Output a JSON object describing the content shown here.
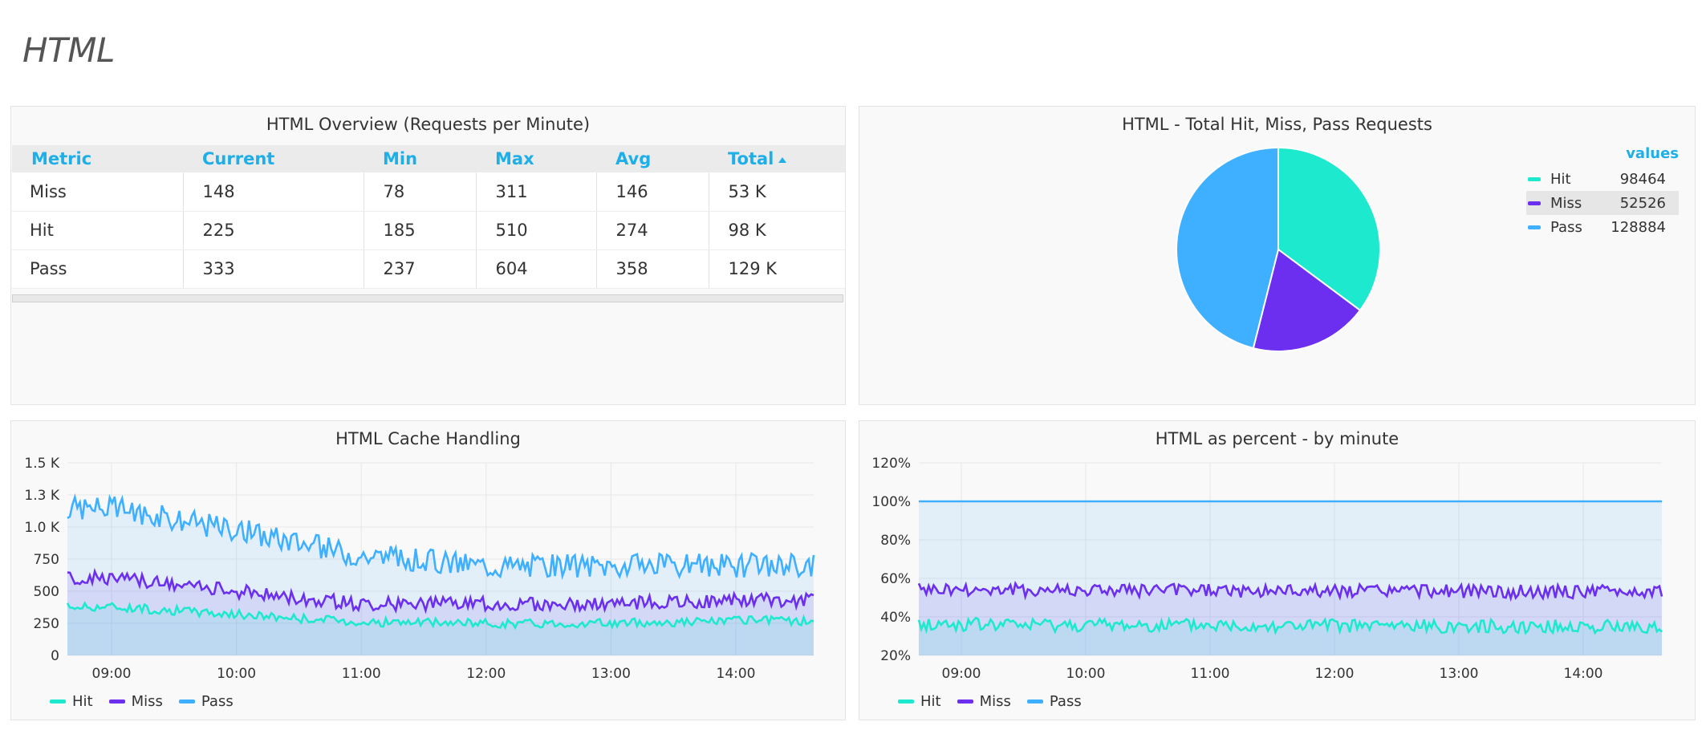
{
  "page": {
    "title": "HTML"
  },
  "colors": {
    "hit": "#1de9ce",
    "miss": "#6c2ff0",
    "pass": "#3fb0ff",
    "accent": "#1eaee8"
  },
  "overview": {
    "title": "HTML Overview (Requests per Minute)",
    "columns": [
      "Metric",
      "Current",
      "Min",
      "Max",
      "Avg",
      "Total"
    ],
    "sorted_column": "Total",
    "rows": [
      [
        "Miss",
        "148",
        "78",
        "311",
        "146",
        "53 K"
      ],
      [
        "Hit",
        "225",
        "185",
        "510",
        "274",
        "98 K"
      ],
      [
        "Pass",
        "333",
        "237",
        "604",
        "358",
        "129 K"
      ]
    ]
  },
  "pie": {
    "title": "HTML - Total Hit, Miss, Pass Requests",
    "legend_header": "values",
    "items": [
      {
        "name": "Hit",
        "value": 98464,
        "value_text": "98464"
      },
      {
        "name": "Miss",
        "value": 52526,
        "value_text": "52526"
      },
      {
        "name": "Pass",
        "value": 128884,
        "value_text": "128884"
      }
    ]
  },
  "chart_data": [
    {
      "type": "area",
      "title": "HTML Cache Handling",
      "ylim": [
        0,
        1500
      ],
      "yticks": [
        "0",
        "250",
        "500",
        "750",
        "1.0 K",
        "1.3 K",
        "1.5 K"
      ],
      "ytick_values": [
        0,
        250,
        500,
        750,
        1000,
        1250,
        1500
      ],
      "xticks": [
        "09:00",
        "10:00",
        "11:00",
        "12:00",
        "13:00",
        "14:00"
      ],
      "stacked": true,
      "series": [
        {
          "name": "Hit",
          "color": "#1de9ce",
          "levels": [
            [
              0,
              380
            ],
            [
              1,
              320
            ],
            [
              2,
              260
            ],
            [
              3,
              250
            ],
            [
              4,
              250
            ],
            [
              5,
              270
            ]
          ]
        },
        {
          "name": "Miss",
          "color": "#6c2ff0",
          "levels": [
            [
              0,
              600
            ],
            [
              1,
              500
            ],
            [
              2,
              400
            ],
            [
              3,
              400
            ],
            [
              4,
              400
            ],
            [
              5,
              430
            ]
          ]
        },
        {
          "name": "Pass",
          "color": "#3fb0ff",
          "levels": [
            [
              0,
              1150
            ],
            [
              1,
              980
            ],
            [
              2,
              780
            ],
            [
              3,
              700
            ],
            [
              4,
              700
            ],
            [
              5,
              700
            ]
          ]
        }
      ],
      "legend": [
        "Hit",
        "Miss",
        "Pass"
      ]
    },
    {
      "type": "area",
      "title": "HTML as percent - by minute",
      "ylim": [
        20,
        120
      ],
      "yticks": [
        "20%",
        "40%",
        "60%",
        "80%",
        "100%",
        "120%"
      ],
      "ytick_values": [
        20,
        40,
        60,
        80,
        100,
        120
      ],
      "xticks": [
        "09:00",
        "10:00",
        "11:00",
        "12:00",
        "13:00",
        "14:00"
      ],
      "stacked": true,
      "series": [
        {
          "name": "Hit",
          "color": "#1de9ce",
          "levels": [
            [
              0,
              36
            ],
            [
              5,
              35
            ]
          ]
        },
        {
          "name": "Miss",
          "color": "#6c2ff0",
          "levels": [
            [
              0,
              54
            ],
            [
              5,
              53
            ]
          ]
        },
        {
          "name": "Pass",
          "color": "#3fb0ff",
          "levels": [
            [
              0,
              100
            ],
            [
              5,
              100
            ]
          ]
        }
      ],
      "legend": [
        "Hit",
        "Miss",
        "Pass"
      ]
    }
  ]
}
